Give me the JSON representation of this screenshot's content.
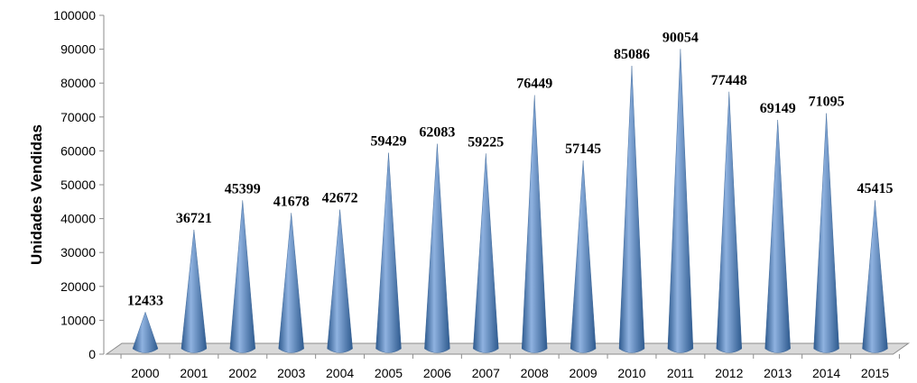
{
  "chart_data": {
    "type": "bar",
    "bar_style": "3d-cone",
    "title": "",
    "xlabel": "",
    "ylabel": "Unidades Vendidas",
    "ylim": [
      0,
      100000
    ],
    "ytick_step": 10000,
    "grid": false,
    "legend": "none",
    "categories": [
      "2000",
      "2001",
      "2002",
      "2003",
      "2004",
      "2005",
      "2006",
      "2007",
      "2008",
      "2009",
      "2010",
      "2011",
      "2012",
      "2013",
      "2014",
      "2015"
    ],
    "series": [
      {
        "values": [
          12433,
          36721,
          45399,
          41678,
          42672,
          59429,
          62083,
          59225,
          76449,
          57145,
          85086,
          90054,
          77448,
          69149,
          71095,
          45415
        ]
      }
    ],
    "colors": {
      "cone_light": "#8fb2e0",
      "cone_mid": "#4f81bd",
      "cone_dark": "#2e5a8e",
      "floor": "#d9d9d9",
      "axis": "#8c8c8c"
    }
  }
}
